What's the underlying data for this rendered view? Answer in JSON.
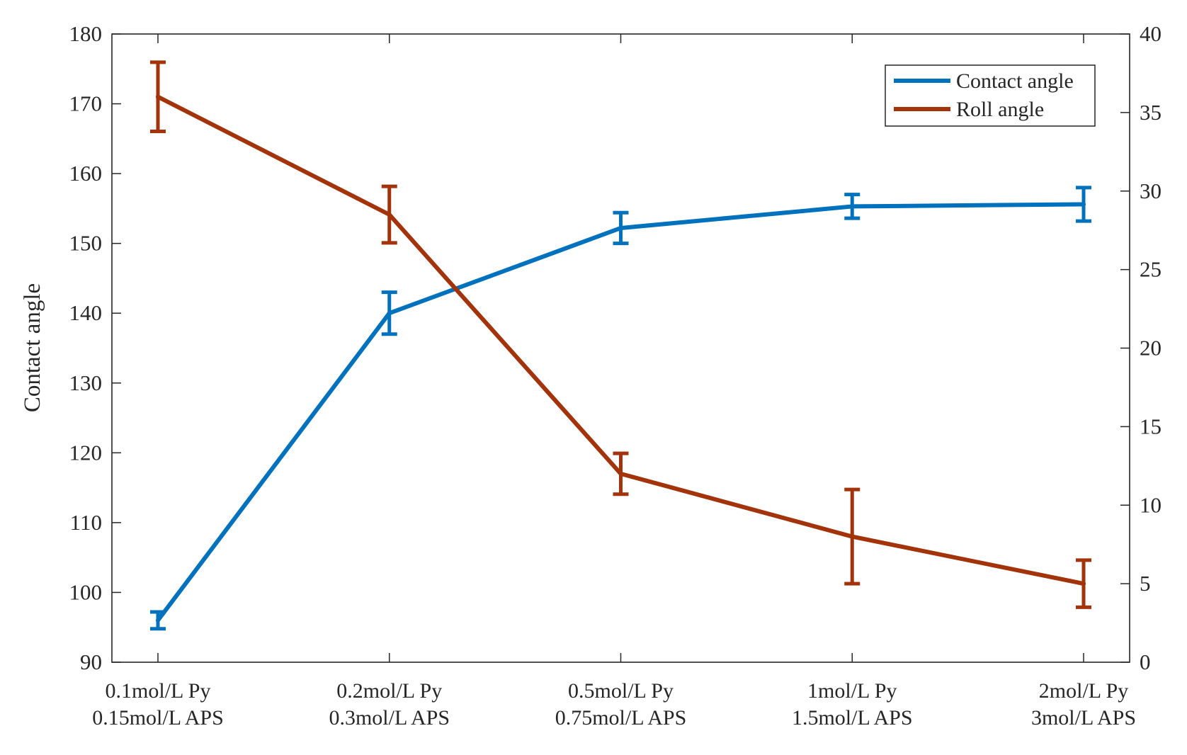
{
  "chart_data": {
    "type": "line",
    "title": "",
    "xlabel": "",
    "ylabel": "Contact angle",
    "y2label": "",
    "categories": [
      [
        "0.1mol/L Py",
        "0.15mol/L APS"
      ],
      [
        "0.2mol/L Py",
        "0.3mol/L APS"
      ],
      [
        "0.5mol/L Py",
        "0.75mol/L APS"
      ],
      [
        "1mol/L Py",
        "1.5mol/L APS"
      ],
      [
        "2mol/L Py",
        "3mol/L APS"
      ]
    ],
    "ylim": [
      90,
      180
    ],
    "yticks": [
      90,
      100,
      110,
      120,
      130,
      140,
      150,
      160,
      170,
      180
    ],
    "y2lim": [
      0,
      40
    ],
    "y2ticks": [
      0,
      5,
      10,
      15,
      20,
      25,
      30,
      35,
      40
    ],
    "grid": false,
    "legend_position": "top-right",
    "series": [
      {
        "name": "Contact angle",
        "axis": "left",
        "color": "#0072BD",
        "values": [
          96,
          140,
          152.2,
          155.3,
          155.6
        ],
        "err_low": [
          1.2,
          3,
          2.2,
          1.7,
          2.4
        ],
        "err_high": [
          1.2,
          3,
          2.2,
          1.7,
          2.4
        ]
      },
      {
        "name": "Roll angle",
        "axis": "right",
        "color": "#A2330B",
        "values": [
          36,
          28.5,
          12,
          8,
          5
        ],
        "err_low": [
          2.2,
          1.8,
          1.3,
          3,
          1.5
        ],
        "err_high": [
          2.2,
          1.8,
          1.3,
          3,
          1.5
        ]
      }
    ]
  }
}
